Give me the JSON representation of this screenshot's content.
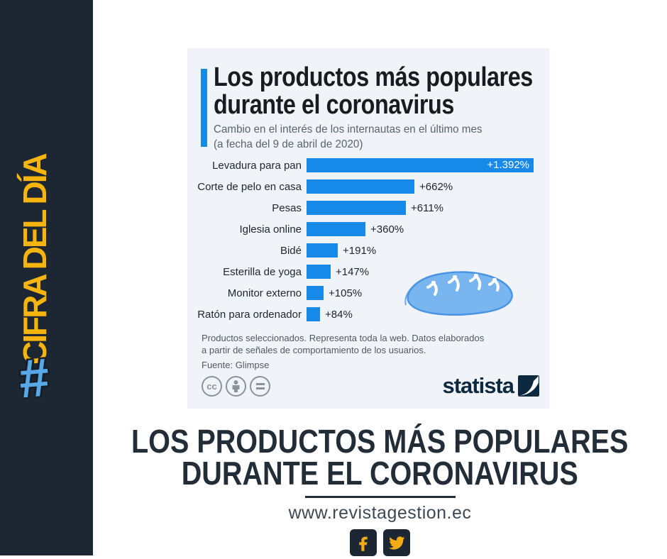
{
  "sidebar": {
    "hashtag": "#",
    "label": "CIFRA DEL DÍA"
  },
  "infographic": {
    "title_line1": "Los productos más populares",
    "title_line2": "durante el coronavirus",
    "subtitle_line1": "Cambio en el interés de los internautas en el último mes",
    "subtitle_line2": "(a fecha del 9 de abril de 2020)",
    "footnote_line1": "Productos seleccionados. Representa toda la web. Datos elaborados",
    "footnote_line2": "a partir de señales de comportamiento de los usuarios.",
    "source": "Fuente: Glimpse",
    "license": {
      "cc_label": "cc"
    },
    "brand": "statista"
  },
  "chart_data": {
    "type": "bar",
    "orientation": "horizontal",
    "title": "Los productos más populares durante el coronavirus",
    "subtitle": "Cambio en el interés de los internautas en el último mes (a fecha del 9 de abril de 2020)",
    "categories": [
      "Levadura para pan",
      "Corte de pelo en casa",
      "Pesas",
      "Iglesia online",
      "Bidé",
      "Esterilla de yoga",
      "Monitor externo",
      "Ratón para ordenador"
    ],
    "values": [
      1392,
      662,
      611,
      360,
      191,
      147,
      105,
      84
    ],
    "value_labels": [
      "+1.392%",
      "+662%",
      "+611%",
      "+360%",
      "+191%",
      "+147%",
      "+105%",
      "+84%"
    ],
    "unit": "%",
    "xlim": [
      0,
      1392
    ],
    "grid": false,
    "legend": false,
    "bar_color": "#1789e8"
  },
  "footer": {
    "headline_line1": "LOS PRODUCTOS MÁS POPULARES",
    "headline_line2": "DURANTE EL CORONAVIRUS",
    "website": "www.revistagestion.ec",
    "social": [
      "facebook",
      "twitter"
    ]
  },
  "colors": {
    "sidebar_bg": "#1d2733",
    "accent_yellow": "#f6b40e",
    "hashtag_blue": "#58a7e6",
    "card_bg": "#f0f4f8",
    "bar_blue": "#1789e8",
    "brand_navy": "#0c2940",
    "headline_navy": "#222d38",
    "social_gold": "#f3ac15",
    "bread_fill": "#79b5ef",
    "bread_stroke": "#4a94e4"
  }
}
